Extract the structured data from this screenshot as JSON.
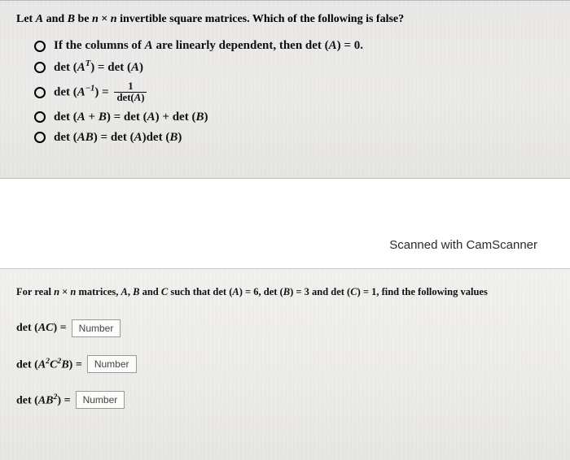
{
  "q1": {
    "prompt_prefix": "Let ",
    "A": "A",
    "and": " and ",
    "B": "B",
    "be": " be ",
    "n": "n",
    "times": " × ",
    "prompt_suffix": " invertible square matrices. Which of the following is false?",
    "options": {
      "o1_a": "If the columns of ",
      "o1_b": " are linearly dependent, then det (",
      "o1_c": ") = 0.",
      "o2_a": "det (",
      "o2_T": "T",
      "o2_b": ") = det (",
      "o2_c": ")",
      "o3_a": "det (",
      "o3_neg1": "−1",
      "o3_b": ") = ",
      "o3_num": "1",
      "o3_den_a": "det(",
      "o3_den_b": ")",
      "o4_a": "det (",
      "o4_plus": " + ",
      "o4_b": ") = det (",
      "o4_c": ") + det (",
      "o4_d": ")",
      "o5_a": "det (",
      "o5_b": ") = det (",
      "o5_c": ")det (",
      "o5_d": ")"
    }
  },
  "scanned": "Scanned with CamScanner",
  "q2": {
    "prompt_a": "For real ",
    "n": "n",
    "times": " × ",
    "prompt_b": " matrices, ",
    "A": "A",
    "B": "B",
    "C": "C",
    "comma": ", ",
    "and": " and ",
    "such": " such that det (",
    "eqA": ") = 6, det (",
    "eqB": ") = 3 and det (",
    "eqC": ") = 1, find the following values",
    "row1_a": "det (",
    "row1_b": ") = ",
    "row2_a": "det (",
    "row2_sup2": "2",
    "row2_b": ") = ",
    "row3_a": "det (",
    "row3_b": ") = ",
    "placeholder": "Number"
  },
  "style": {
    "bg_top": "#e9e8e6",
    "bg_bottom": "#edece9",
    "border": "#9a9a9a",
    "text": "#111111"
  }
}
